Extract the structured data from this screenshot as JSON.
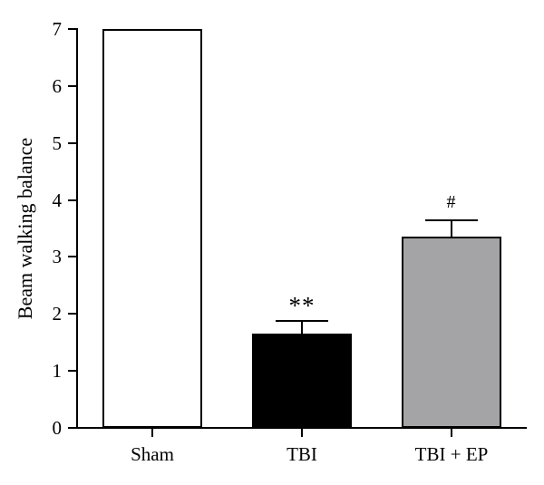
{
  "figure": {
    "background_color": "#ffffff",
    "axis_color": "#000000",
    "text_color": "#000000"
  },
  "chart_data": {
    "type": "bar",
    "title": "",
    "xlabel": "",
    "ylabel": "Beam walking balance",
    "ylim": [
      0,
      7
    ],
    "yticks": [
      0,
      1,
      2,
      3,
      4,
      5,
      6,
      7
    ],
    "categories": [
      "Sham",
      "TBI",
      "TBI + EP"
    ],
    "values": [
      7,
      1.65,
      3.35
    ],
    "errors": [
      0,
      0.23,
      0.3
    ],
    "error_direction": "upper",
    "annotations": [
      "",
      "**",
      "#"
    ],
    "bar_colors": [
      "#ffffff",
      "#000000",
      "#a4a4a6"
    ],
    "bar_border_color": "#000000",
    "grid": false,
    "legend": null
  }
}
